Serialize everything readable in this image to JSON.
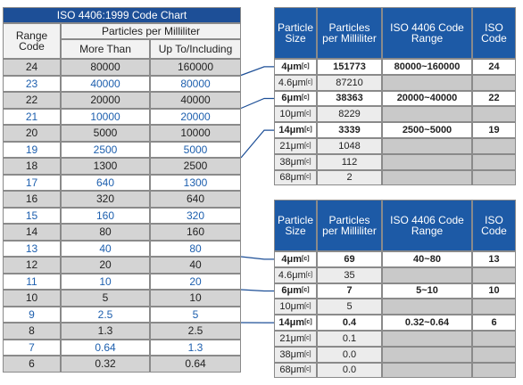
{
  "left_table": {
    "title": "ISO 4406:1999 Code Chart",
    "header": {
      "range_code": "Range Code",
      "particles": "Particles per Milliliter",
      "more_than": "More Than",
      "up_to": "Up To/Including"
    },
    "rows": [
      [
        "24",
        "80000",
        "160000"
      ],
      [
        "23",
        "40000",
        "80000"
      ],
      [
        "22",
        "20000",
        "40000"
      ],
      [
        "21",
        "10000",
        "20000"
      ],
      [
        "20",
        "5000",
        "10000"
      ],
      [
        "19",
        "2500",
        "5000"
      ],
      [
        "18",
        "1300",
        "2500"
      ],
      [
        "17",
        "640",
        "1300"
      ],
      [
        "16",
        "320",
        "640"
      ],
      [
        "15",
        "160",
        "320"
      ],
      [
        "14",
        "80",
        "160"
      ],
      [
        "13",
        "40",
        "80"
      ],
      [
        "12",
        "20",
        "40"
      ],
      [
        "11",
        "10",
        "20"
      ],
      [
        "10",
        "5",
        "10"
      ],
      [
        "9",
        "2.5",
        "5"
      ],
      [
        "8",
        "1.3",
        "2.5"
      ],
      [
        "7",
        "0.64",
        "1.3"
      ],
      [
        "6",
        "0.32",
        "0.64"
      ]
    ]
  },
  "right_tables": [
    {
      "headers": [
        "Particle Size",
        "Particles per Milliliter",
        "ISO 4406 Code Range",
        "ISO Code"
      ],
      "rows": [
        {
          "size": "4μm",
          "sub": "[c]",
          "count": "151773",
          "range": "80000~160000",
          "code": "24"
        },
        {
          "size": "4.6μm",
          "sub": "[c]",
          "count": "87210"
        },
        {
          "size": "6μm",
          "sub": "[c]",
          "count": "38363",
          "range": "20000~40000",
          "code": "22"
        },
        {
          "size": "10μm",
          "sub": "[c]",
          "count": "8229"
        },
        {
          "size": "14μm",
          "sub": "[c]",
          "count": "3339",
          "range": "2500~5000",
          "code": "19"
        },
        {
          "size": "21μm",
          "sub": "[c]",
          "count": "1048"
        },
        {
          "size": "38μm",
          "sub": "[c]",
          "count": "112"
        },
        {
          "size": "68μm",
          "sub": "[c]",
          "count": "2"
        }
      ]
    },
    {
      "headers": [
        "Particle Size",
        "Particles per Milliliter",
        "ISO 4406 Code Range",
        "ISO Code"
      ],
      "rows": [
        {
          "size": "4μm",
          "sub": "[c]",
          "count": "69",
          "range": "40~80",
          "code": "13"
        },
        {
          "size": "4.6μm",
          "sub": "[c]",
          "count": "35"
        },
        {
          "size": "6μm",
          "sub": "[c]",
          "count": "7",
          "range": "5~10",
          "code": "10"
        },
        {
          "size": "10μm",
          "sub": "[c]",
          "count": "5"
        },
        {
          "size": "14μm",
          "sub": "[c]",
          "count": "0.4",
          "range": "0.32~0.64",
          "code": "6"
        },
        {
          "size": "21μm",
          "sub": "[c]",
          "count": "0.1"
        },
        {
          "size": "38μm",
          "sub": "[c]",
          "count": "0.0"
        },
        {
          "size": "68μm",
          "sub": "[c]",
          "count": "0.0"
        }
      ]
    }
  ]
}
